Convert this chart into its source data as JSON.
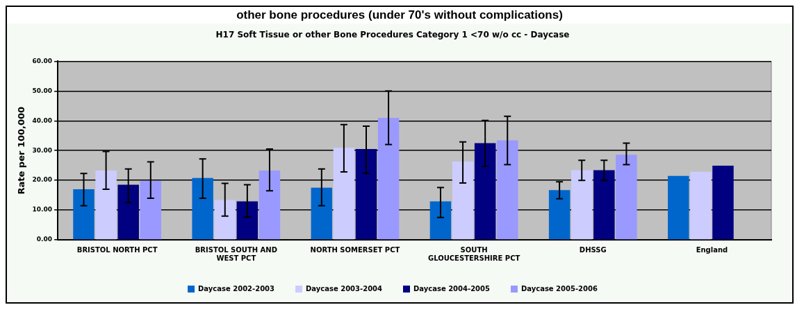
{
  "chart_data": {
    "type": "bar",
    "title": "H17 Soft Tissue or other Bone Procedures Category 1 <70 w/o cc - Daycase",
    "annotations": [
      "other bone procedures (under 70's without complications)"
    ],
    "ylabel": "Rate per 100,000",
    "categories": [
      "BRISTOL NORTH PCT",
      "BRISTOL SOUTH AND WEST PCT",
      "NORTH SOMERSET PCT",
      "SOUTH GLOUCESTERSHIRE PCT",
      "DHSSG",
      "England"
    ],
    "series": [
      {
        "name": "Daycase 2002-2003",
        "color": "#0066cc",
        "values": [
          17,
          20.8,
          17.5,
          12.9,
          16.7,
          21.5
        ],
        "errors": [
          [
            11.5,
            22.3
          ],
          [
            14,
            27.2
          ],
          [
            11.5,
            23.8
          ],
          [
            7.5,
            17.6
          ],
          [
            13.8,
            19.5
          ],
          null
        ]
      },
      {
        "name": "Daycase 2003-2004",
        "color": "#ccccff",
        "values": [
          23.3,
          13.4,
          31,
          26.3,
          23.4,
          22.9
        ],
        "errors": [
          [
            17,
            29.7
          ],
          [
            8,
            19
          ],
          [
            22.8,
            38.7
          ],
          [
            19.1,
            32.9
          ],
          [
            20,
            26.7
          ],
          null
        ]
      },
      {
        "name": "Daycase 2004-2005",
        "color": "#000080",
        "values": [
          18.5,
          12.9,
          30.5,
          32.5,
          23.4,
          24.9
        ],
        "errors": [
          [
            12.5,
            23.8
          ],
          [
            7.6,
            18.5
          ],
          [
            22.3,
            38.2
          ],
          [
            24.7,
            40.1
          ],
          [
            20,
            26.7
          ],
          null
        ]
      },
      {
        "name": "Daycase 2005-2006",
        "color": "#9999ff",
        "values": [
          19.8,
          23.3,
          41,
          33.4,
          28.6,
          null
        ],
        "errors": [
          [
            14,
            26.2
          ],
          [
            16.5,
            30.5
          ],
          [
            32,
            50
          ],
          [
            25.3,
            41.5
          ],
          [
            25.3,
            32.5
          ],
          null
        ]
      }
    ],
    "ylim": [
      0,
      60
    ],
    "yticks": [
      {
        "value": 0,
        "label": "0.00"
      },
      {
        "value": 10,
        "label": "10.00"
      },
      {
        "value": 20,
        "label": "20.00"
      },
      {
        "value": 30,
        "label": "30.00"
      },
      {
        "value": 40,
        "label": "40.00"
      },
      {
        "value": 50,
        "label": "50.00"
      },
      {
        "value": 60,
        "label": "60.00"
      }
    ],
    "grid": "y",
    "legend": "bottom"
  }
}
